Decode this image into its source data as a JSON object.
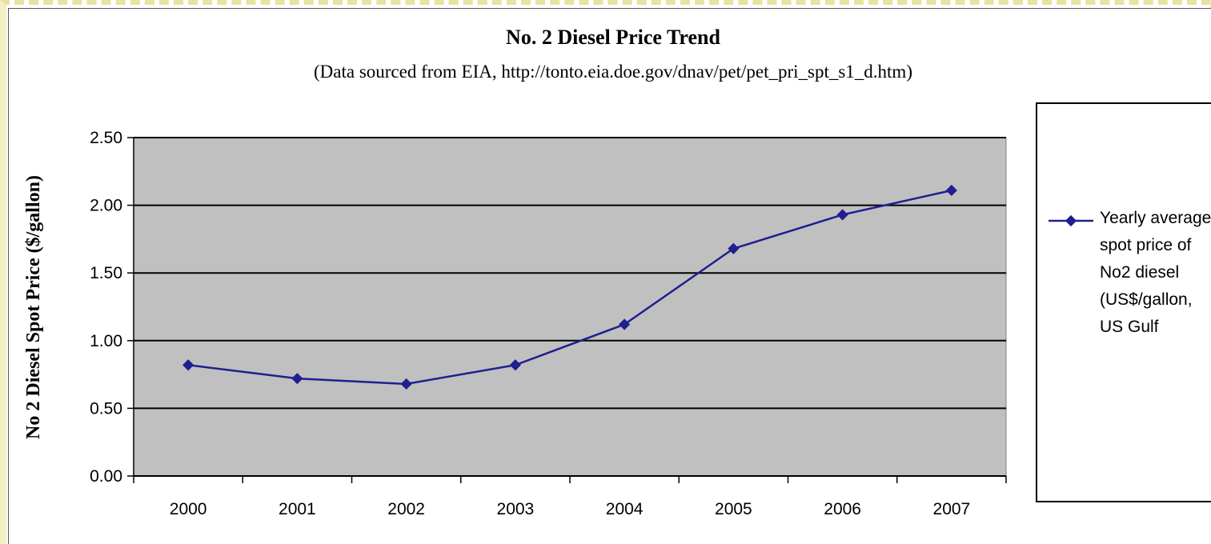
{
  "chart_data": {
    "type": "line",
    "title": "No. 2 Diesel Price Trend",
    "subtitle": "(Data sourced from EIA, http://tonto.eia.doe.gov/dnav/pet/pet_pri_spt_s1_d.htm)",
    "xlabel": "",
    "ylabel": "No 2 Diesel Spot Price ($/gallon)",
    "categories": [
      "2000",
      "2001",
      "2002",
      "2003",
      "2004",
      "2005",
      "2006",
      "2007"
    ],
    "ylim": [
      0,
      2.5
    ],
    "yticks": [
      "0.00",
      "0.50",
      "1.00",
      "1.50",
      "2.00",
      "2.50"
    ],
    "grid": true,
    "legend_position": "right",
    "series": [
      {
        "name": "Yearly average spot price of No2 diesel (US$/gallon, US Gulf",
        "values": [
          0.82,
          0.72,
          0.68,
          0.82,
          1.12,
          1.68,
          1.93,
          2.11
        ],
        "color": "#1f1f8f"
      }
    ],
    "plot_background": "#c0c0c0"
  }
}
